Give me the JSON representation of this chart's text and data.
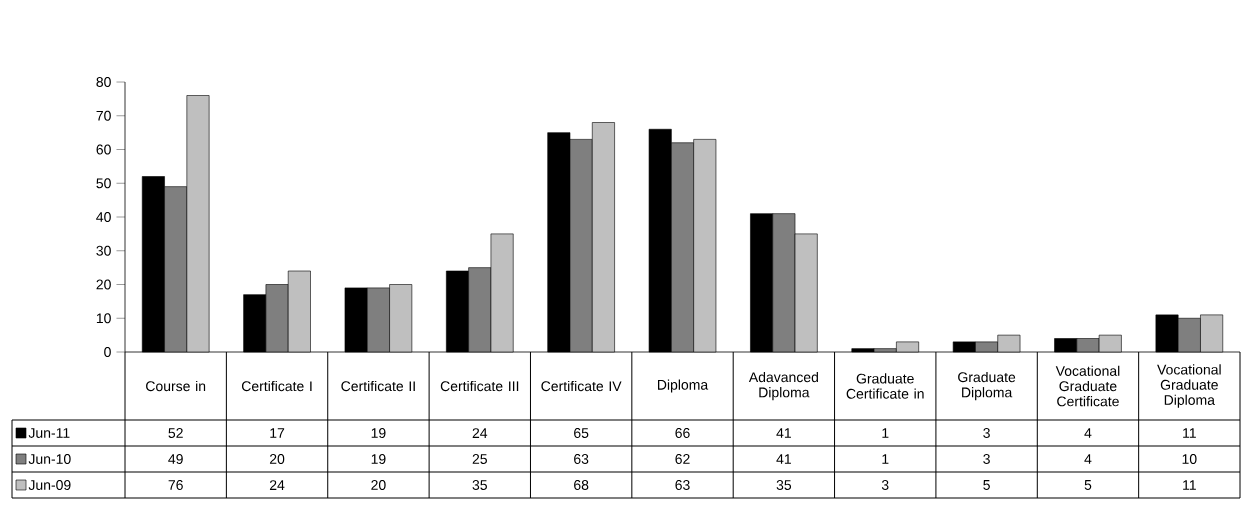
{
  "chart_data": {
    "type": "bar",
    "categories": [
      "Course in",
      "Certificate I",
      "Certificate II",
      "Certificate III",
      "Certificate IV",
      "Diploma",
      "Adavanced Diploma",
      "Graduate Certificate in",
      "Graduate Diploma",
      "Vocational Graduate Certificate",
      "Vocational Graduate Diploma"
    ],
    "series": [
      {
        "name": "Jun-11",
        "color": "#000000",
        "values": [
          52,
          17,
          19,
          24,
          65,
          66,
          41,
          1,
          3,
          4,
          11
        ]
      },
      {
        "name": "Jun-10",
        "color": "#7f7f7f",
        "values": [
          49,
          20,
          19,
          25,
          63,
          62,
          41,
          1,
          3,
          4,
          10
        ]
      },
      {
        "name": "Jun-09",
        "color": "#bfbfbf",
        "values": [
          76,
          24,
          20,
          35,
          68,
          63,
          35,
          3,
          5,
          5,
          11
        ]
      }
    ],
    "ylim": [
      0,
      80
    ],
    "yticks": [
      0,
      10,
      20,
      30,
      40,
      50,
      60,
      70,
      80
    ],
    "data_labels": true,
    "legend": "bottom left",
    "grid": false
  }
}
